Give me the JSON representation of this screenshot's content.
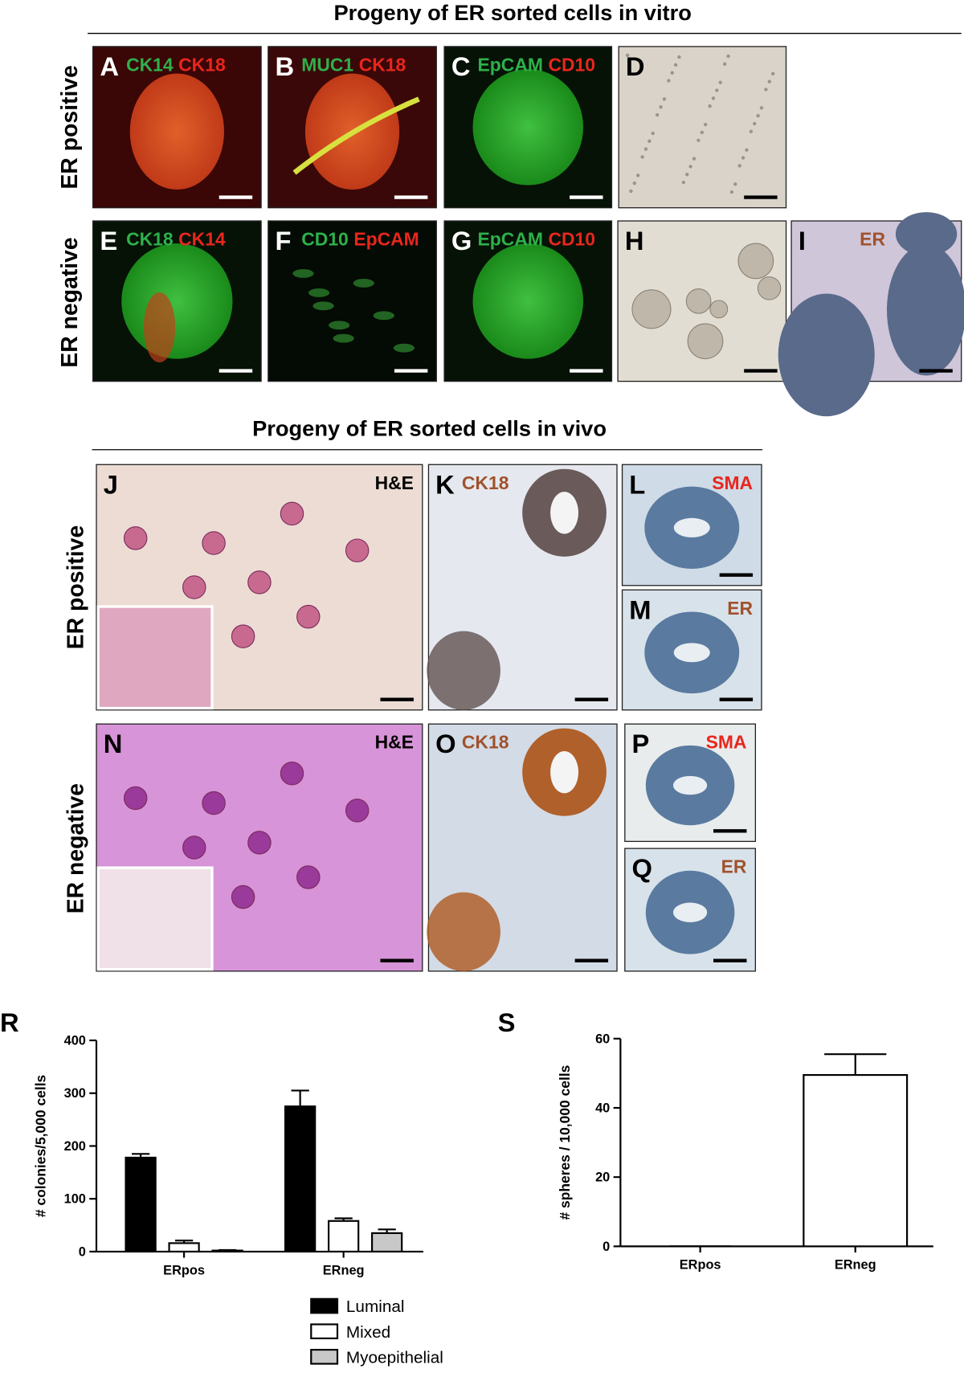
{
  "in_vitro": {
    "title": "Progeny of ER sorted cells in vitro",
    "row_labels": [
      "ER positive",
      "ER negative"
    ],
    "panels": [
      {
        "letter": "A",
        "stains": [
          {
            "text": "CK14",
            "color": "#2fb04a"
          },
          {
            "text": "CK18",
            "color": "#e8261d"
          }
        ]
      },
      {
        "letter": "B",
        "stains": [
          {
            "text": "MUC1",
            "color": "#2fb04a"
          },
          {
            "text": "CK18",
            "color": "#e8261d"
          }
        ]
      },
      {
        "letter": "C",
        "stains": [
          {
            "text": "EpCAM",
            "color": "#2fb04a"
          },
          {
            "text": "CD10",
            "color": "#e8261d"
          }
        ]
      },
      {
        "letter": "D",
        "stains": []
      },
      {
        "letter": "E",
        "stains": [
          {
            "text": "CK18",
            "color": "#2fb04a"
          },
          {
            "text": "CK14",
            "color": "#e8261d"
          }
        ]
      },
      {
        "letter": "F",
        "stains": [
          {
            "text": "CD10",
            "color": "#2fb04a"
          },
          {
            "text": "EpCAM",
            "color": "#e8261d"
          }
        ]
      },
      {
        "letter": "G",
        "stains": [
          {
            "text": "EpCAM",
            "color": "#2fb04a"
          },
          {
            "text": "CD10",
            "color": "#e8261d"
          }
        ]
      },
      {
        "letter": "H",
        "stains": []
      },
      {
        "letter": "I",
        "stains": [
          {
            "text": "ER",
            "color": "#a0522d"
          }
        ]
      }
    ]
  },
  "in_vivo": {
    "title": "Progeny of ER sorted cells in vivo",
    "row_labels": [
      "ER positive",
      "ER negative"
    ],
    "panels": [
      {
        "letter": "J",
        "stains": [
          {
            "text": "H&E",
            "color": "#000000"
          }
        ]
      },
      {
        "letter": "K",
        "stains": [
          {
            "text": "CK18",
            "color": "#a0522d"
          }
        ]
      },
      {
        "letter": "L",
        "stains": [
          {
            "text": "SMA",
            "color": "#e8261d"
          }
        ]
      },
      {
        "letter": "M",
        "stains": [
          {
            "text": "ER",
            "color": "#a0522d"
          }
        ]
      },
      {
        "letter": "N",
        "stains": [
          {
            "text": "H&E",
            "color": "#000000"
          }
        ]
      },
      {
        "letter": "O",
        "stains": [
          {
            "text": "CK18",
            "color": "#a0522d"
          }
        ]
      },
      {
        "letter": "P",
        "stains": [
          {
            "text": "SMA",
            "color": "#e8261d"
          }
        ]
      },
      {
        "letter": "Q",
        "stains": [
          {
            "text": "ER",
            "color": "#a0522d"
          }
        ]
      }
    ]
  },
  "chart_data": [
    {
      "type": "bar",
      "panel": "R",
      "ylabel": "# colonies/5,000 cells",
      "categories": [
        "ERpos",
        "ERneg"
      ],
      "series": [
        {
          "name": "Luminal",
          "color": "#000000",
          "values": [
            178,
            275
          ],
          "errors": [
            7,
            30
          ]
        },
        {
          "name": "Mixed",
          "color": "#ffffff",
          "values": [
            16,
            58
          ],
          "errors": [
            5,
            5
          ]
        },
        {
          "name": "Myoepithelial",
          "color": "#c8c8c8",
          "values": [
            2,
            35
          ],
          "errors": [
            1,
            7
          ]
        }
      ],
      "ylim": [
        0,
        400
      ],
      "yticks": [
        0,
        100,
        200,
        300,
        400
      ]
    },
    {
      "type": "bar",
      "panel": "S",
      "ylabel": "# spheres / 10,000 cells",
      "categories": [
        "ERpos",
        "ERneg"
      ],
      "values": [
        0,
        49.5
      ],
      "errors": [
        0,
        6
      ],
      "color": "#ffffff",
      "ylim": [
        0,
        60
      ],
      "yticks": [
        0,
        20,
        40,
        60
      ]
    }
  ]
}
